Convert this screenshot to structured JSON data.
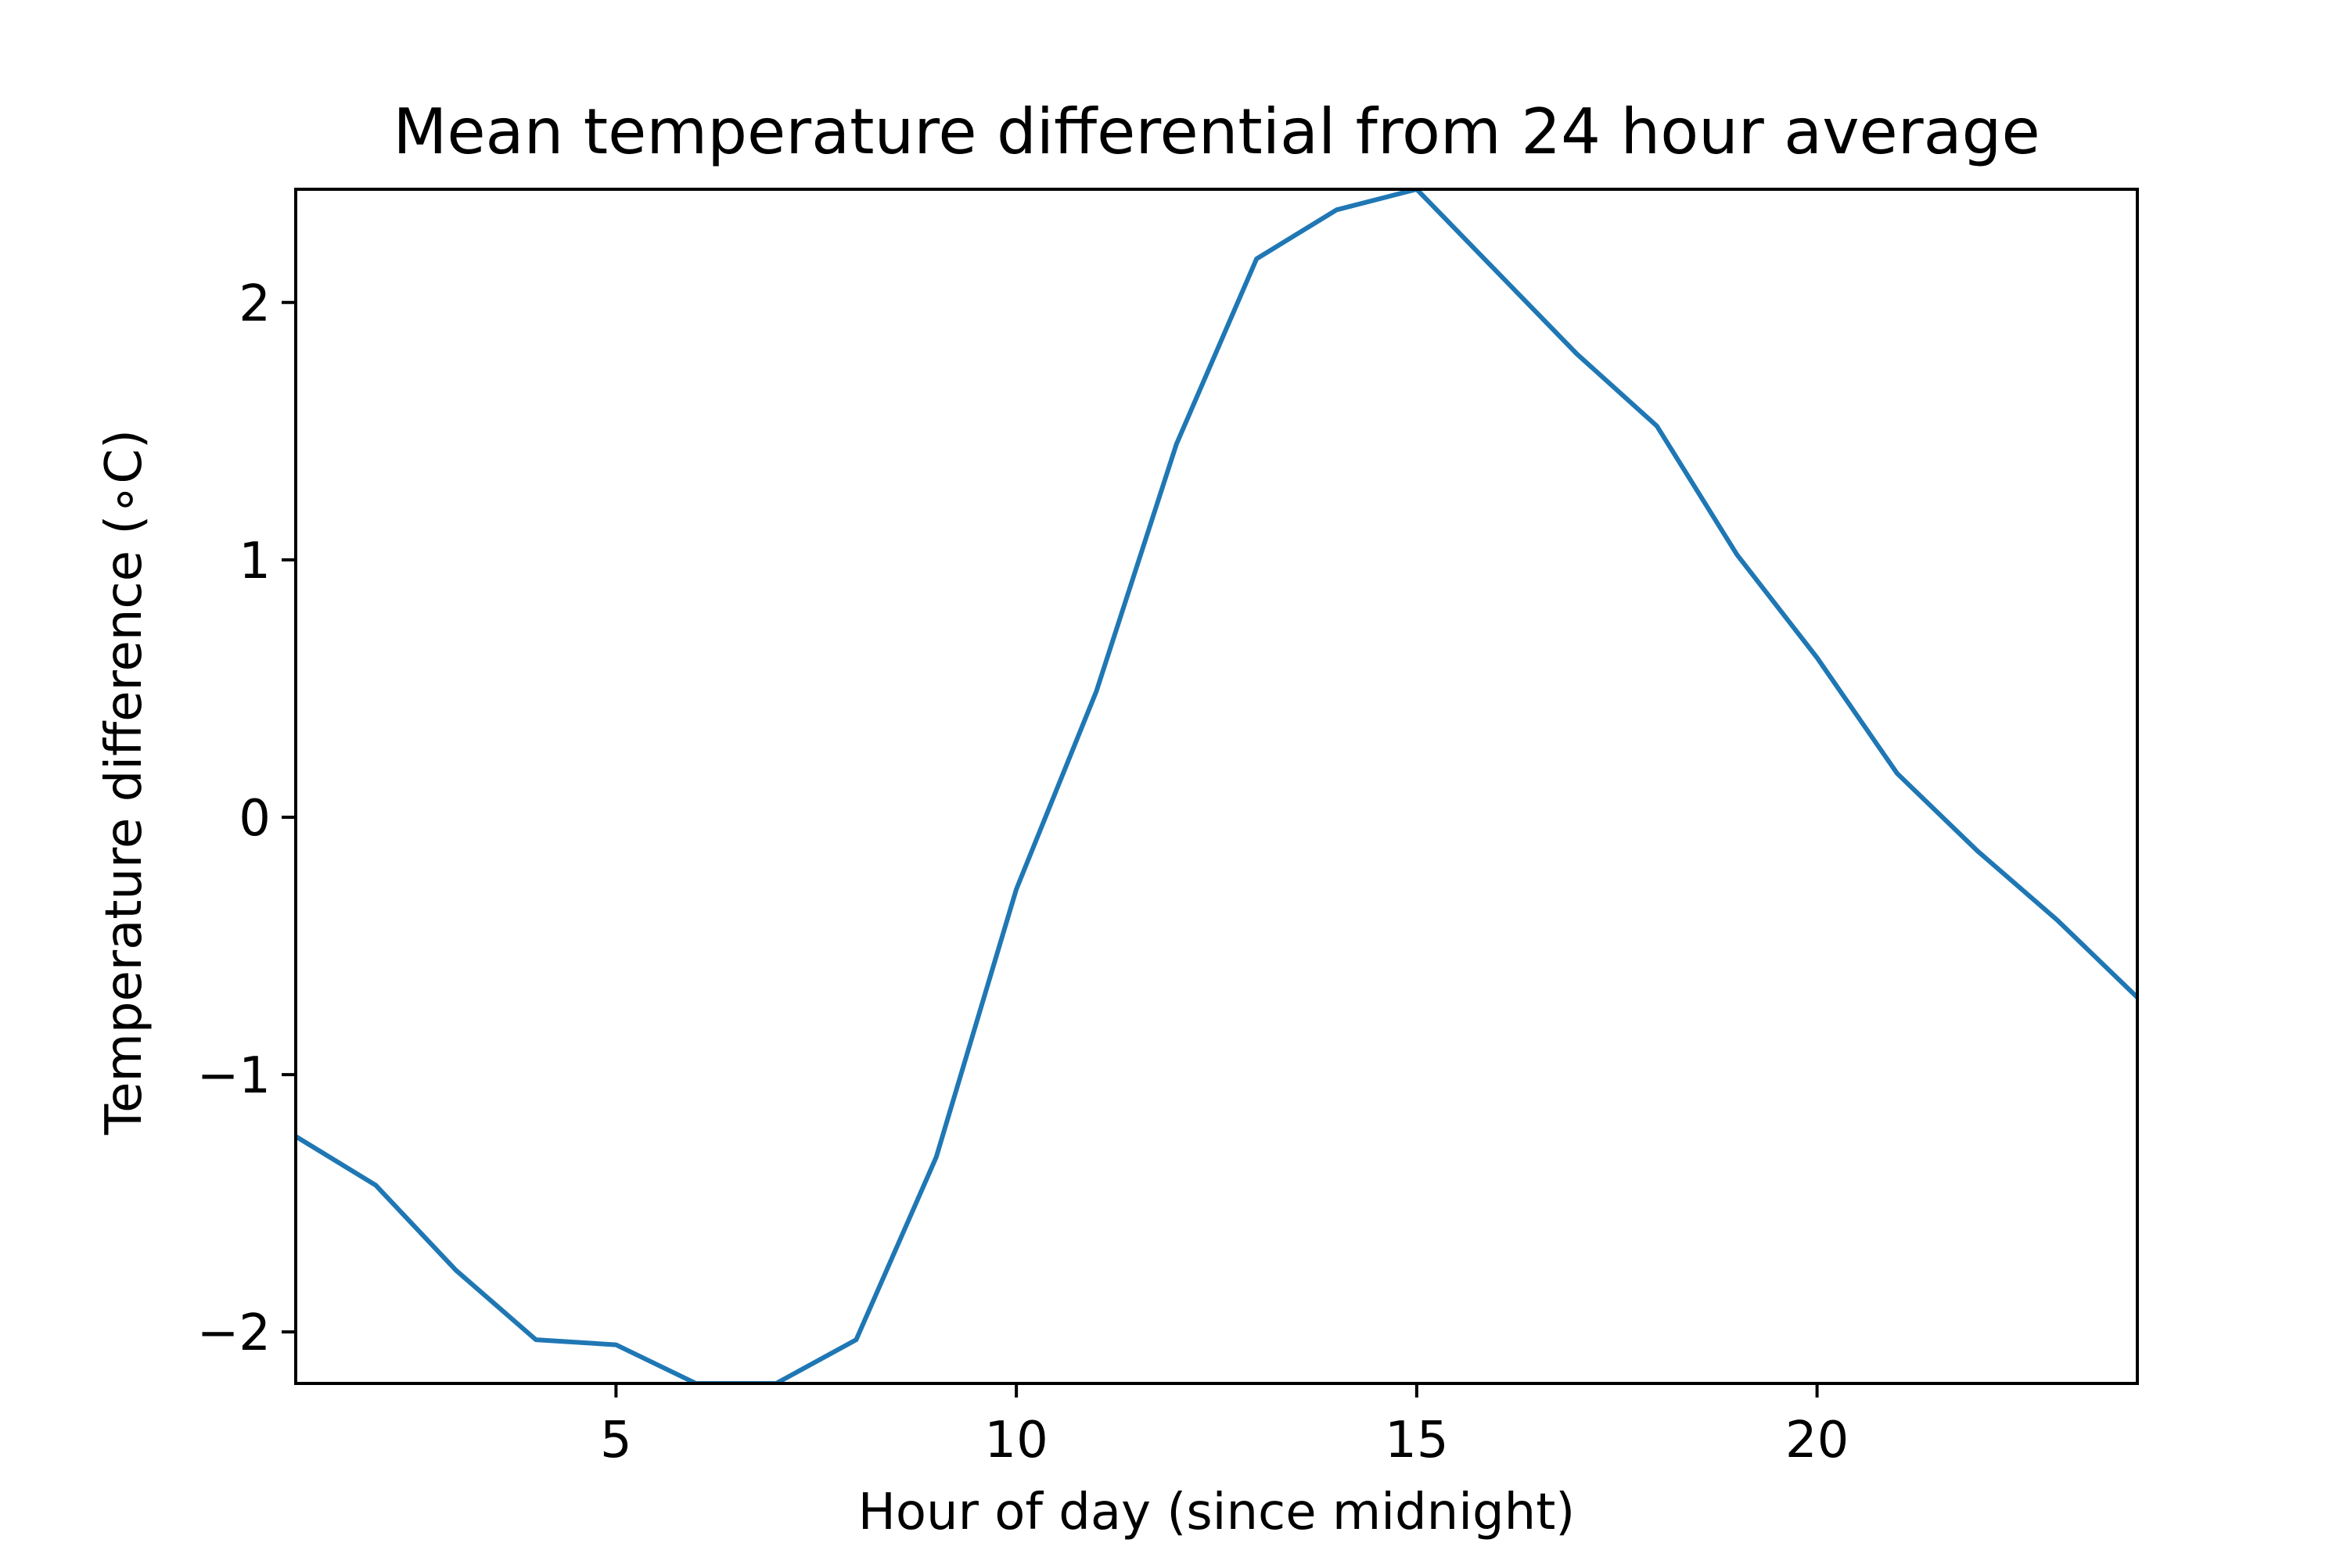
{
  "chart_data": {
    "type": "line",
    "title": "Mean temperature differential from 24 hour average",
    "xlabel": "Hour of day (since midnight)",
    "ylabel": "Temperature difference (∘C)",
    "xlim": [
      1,
      24
    ],
    "ylim": [
      -2.2,
      2.44
    ],
    "xticks": [
      5,
      10,
      15,
      20
    ],
    "yticks": [
      -2,
      -1,
      0,
      1,
      2
    ],
    "xtick_labels": [
      "5",
      "10",
      "15",
      "20"
    ],
    "ytick_labels": [
      "−2",
      "−1",
      "0",
      "1",
      "2"
    ],
    "grid": false,
    "line_color": "#1f77b4",
    "series": [
      {
        "x": [
          1,
          2,
          3,
          4,
          5,
          6,
          7,
          8,
          9,
          10,
          11,
          12,
          13,
          14,
          15,
          16,
          17,
          18,
          19,
          20,
          21,
          22,
          23,
          24
        ],
        "values": [
          -1.24,
          -1.43,
          -1.76,
          -2.03,
          -2.05,
          -2.2,
          -2.2,
          -2.03,
          -1.32,
          -0.28,
          0.49,
          1.45,
          2.17,
          2.36,
          2.44,
          2.12,
          1.8,
          1.52,
          1.02,
          0.62,
          0.17,
          -0.13,
          -0.4,
          -0.7
        ]
      }
    ]
  }
}
